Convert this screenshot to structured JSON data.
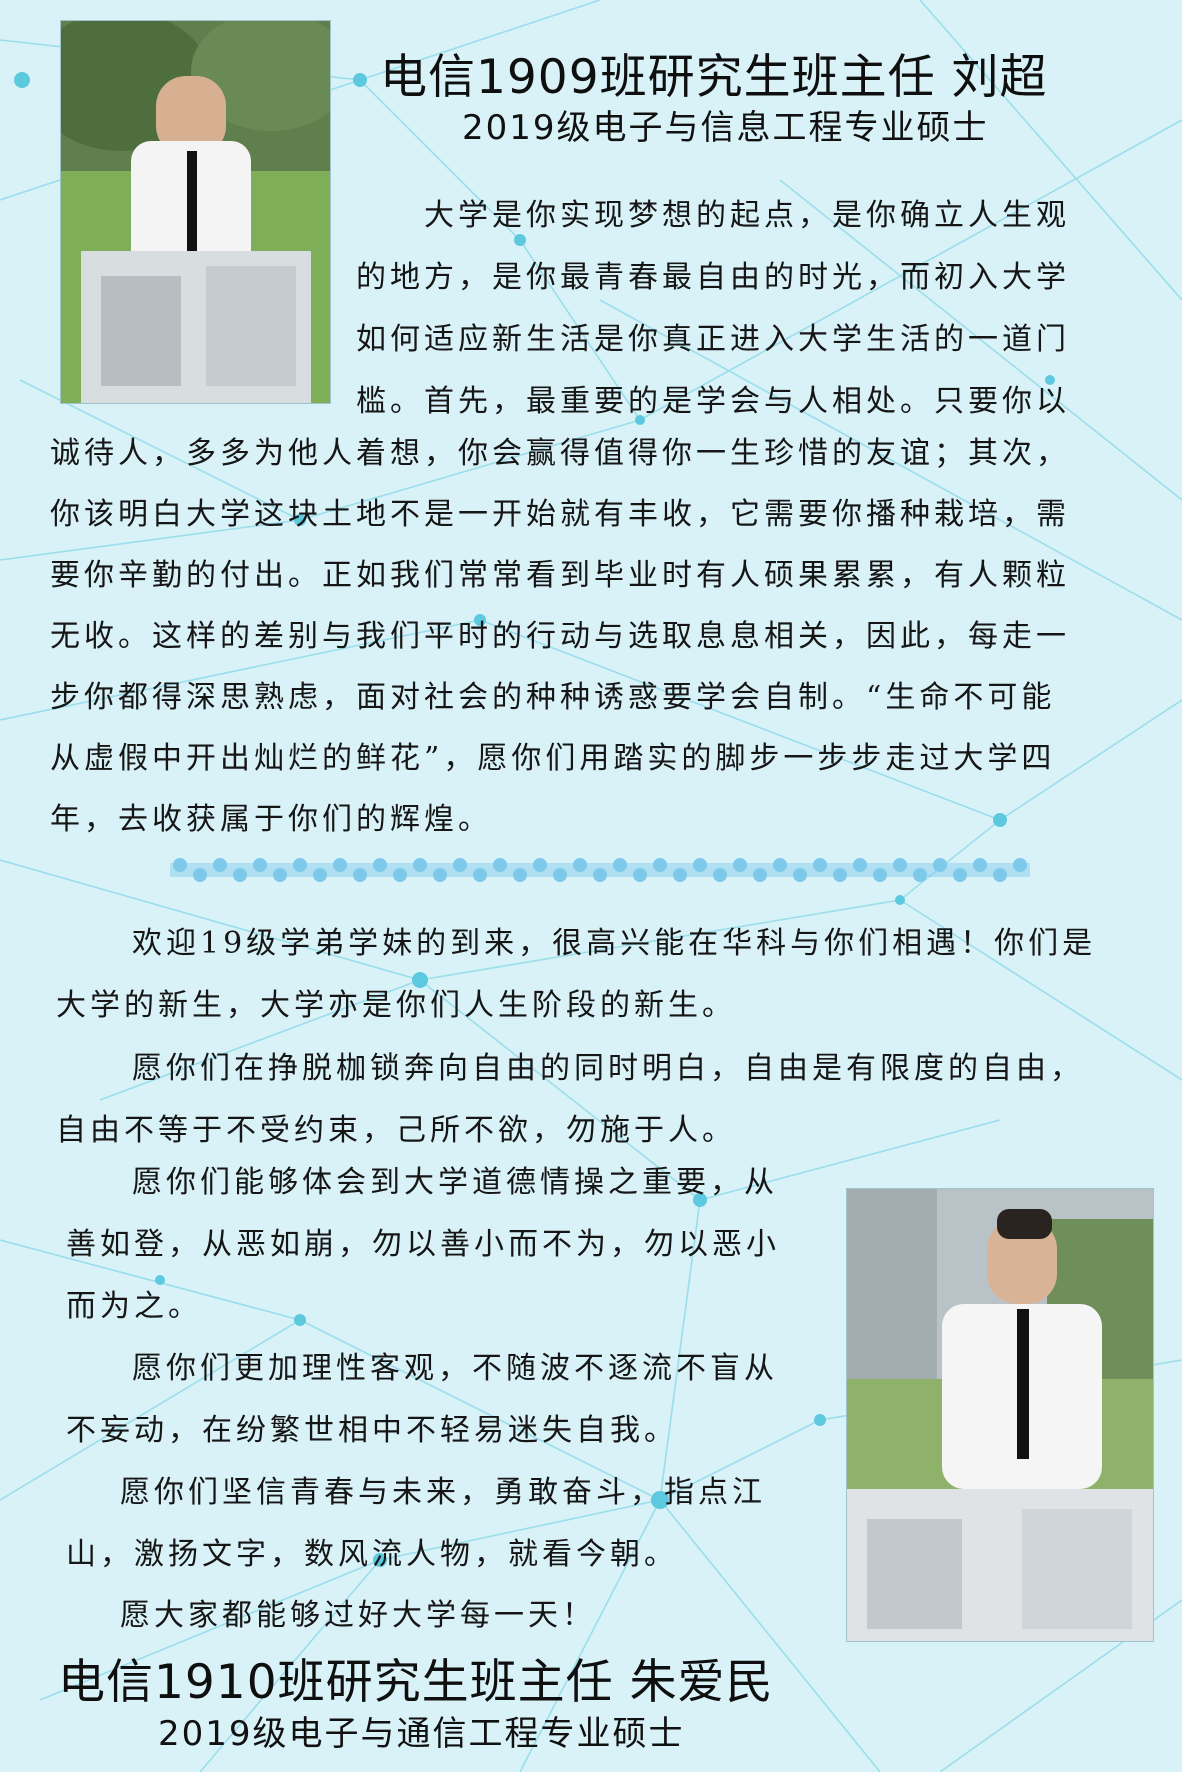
{
  "header": {
    "title": "电信1909班研究生班主任 刘超",
    "subtitle": "2019级电子与信息工程专业硕士"
  },
  "letter1": {
    "lines": [
      "大学是你实现梦想的起点，是你确立人生观",
      "的地方，是你最青春最自由的时光，而初入大学",
      "如何适应新生活是你真正进入大学生活的一道门",
      "槛。首先，最重要的是学会与人相处。只要你以",
      "诚待人，多多为他人着想，你会赢得值得你一生珍惜的友谊；其次，",
      "你该明白大学这块土地不是一开始就有丰收，它需要你播种栽培，需",
      "要你辛勤的付出。正如我们常常看到毕业时有人硕果累累，有人颗粒",
      "无收。这样的差别与我们平时的行动与选取息息相关，因此，每走一",
      "步你都得深思熟虑，面对社会的种种诱惑要学会自制。“生命不可能",
      "从虚假中开出灿烂的鲜花”，愿你们用踏实的脚步一步步走过大学四",
      "年，去收获属于你们的辉煌。"
    ]
  },
  "letter2": {
    "lines": [
      "欢迎19级学弟学妹的到来，很高兴能在华科与你们相遇！你们是",
      "大学的新生，大学亦是你们人生阶段的新生。",
      "愿你们在挣脱枷锁奔向自由的同时明白，自由是有限度的自由，",
      "自由不等于不受约束，己所不欲，勿施于人。",
      "愿你们能够体会到大学道德情操之重要，从",
      "善如登，从恶如崩，勿以善小而不为，勿以恶小",
      "而为之。",
      "愿你们更加理性客观，不随波不逐流不盲从",
      "不妄动，在纷繁世相中不轻易迷失自我。",
      "愿你们坚信青春与未来，勇敢奋斗，指点江",
      "山，激扬文字，数风流人物，就看今朝。",
      "愿大家都能够过好大学每一天！"
    ]
  },
  "footer": {
    "title": "电信1910班研究生班主任 朱爱民",
    "subtitle": "2019级电子与通信工程专业硕士"
  },
  "colors": {
    "background": "#d9f2f8",
    "network": "#7fd6e6",
    "node": "#5cc9de",
    "divider": "#7ec8ea"
  }
}
